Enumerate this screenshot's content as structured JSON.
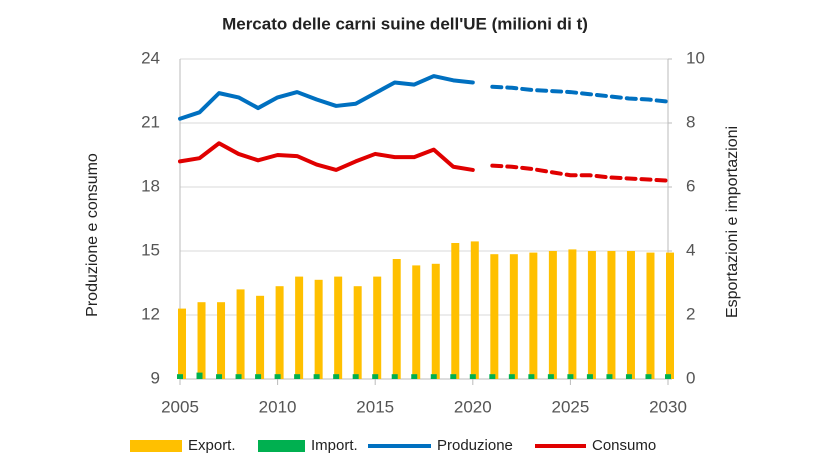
{
  "chart_data": {
    "type": "combo",
    "title": "Mercato delle carni suine dell'UE (milioni di t)",
    "y_label": "Produzione e consumo",
    "y2_label": "Esportazioni e importazioni",
    "x": [
      2005,
      2006,
      2007,
      2008,
      2009,
      2010,
      2011,
      2012,
      2013,
      2014,
      2015,
      2016,
      2017,
      2018,
      2019,
      2020,
      2021,
      2022,
      2023,
      2024,
      2025,
      2026,
      2027,
      2028,
      2029,
      2030
    ],
    "xlim": [
      2005,
      2030
    ],
    "xticks": [
      2005,
      2010,
      2015,
      2020,
      2025,
      2030
    ],
    "ylim": [
      9,
      24
    ],
    "yticks": [
      9,
      12,
      15,
      18,
      21,
      24
    ],
    "y2lim": [
      0,
      10
    ],
    "y2ticks": [
      0,
      2,
      4,
      6,
      8,
      10
    ],
    "grid": true,
    "projection_start": 2021,
    "series": [
      {
        "name": "Export.",
        "type": "bar",
        "axis": "y2",
        "color": "#ffc000",
        "values": [
          2.2,
          2.4,
          2.4,
          2.8,
          2.6,
          2.9,
          3.2,
          3.1,
          3.2,
          2.9,
          3.2,
          3.75,
          3.55,
          3.6,
          4.25,
          4.3,
          3.9,
          3.9,
          3.95,
          4.0,
          4.05,
          4.0,
          4.0,
          4.0,
          3.95,
          3.95
        ]
      },
      {
        "name": "Import.",
        "type": "bar",
        "axis": "y2",
        "color": "#00b050",
        "values": [
          0.15,
          0.2,
          0.15,
          0.15,
          0.15,
          0.15,
          0.15,
          0.15,
          0.15,
          0.15,
          0.15,
          0.15,
          0.15,
          0.15,
          0.15,
          0.15,
          0.15,
          0.15,
          0.15,
          0.15,
          0.15,
          0.15,
          0.15,
          0.15,
          0.15,
          0.15
        ]
      },
      {
        "name": "Produzione",
        "type": "line",
        "color": "#0070c0",
        "values": [
          21.2,
          21.5,
          22.4,
          22.2,
          21.7,
          22.2,
          22.45,
          22.1,
          21.8,
          21.9,
          22.4,
          22.9,
          22.8,
          23.2,
          23.0,
          22.9,
          22.7,
          22.65,
          22.55,
          22.5,
          22.45,
          22.35,
          22.25,
          22.15,
          22.1,
          22.0
        ]
      },
      {
        "name": "Consumo",
        "type": "line",
        "color": "#e00000",
        "values": [
          19.2,
          19.35,
          20.05,
          19.55,
          19.25,
          19.5,
          19.45,
          19.05,
          18.8,
          19.2,
          19.55,
          19.4,
          19.4,
          19.75,
          18.95,
          18.8,
          19.0,
          18.95,
          18.85,
          18.7,
          18.55,
          18.55,
          18.45,
          18.4,
          18.35,
          18.3
        ]
      }
    ]
  }
}
